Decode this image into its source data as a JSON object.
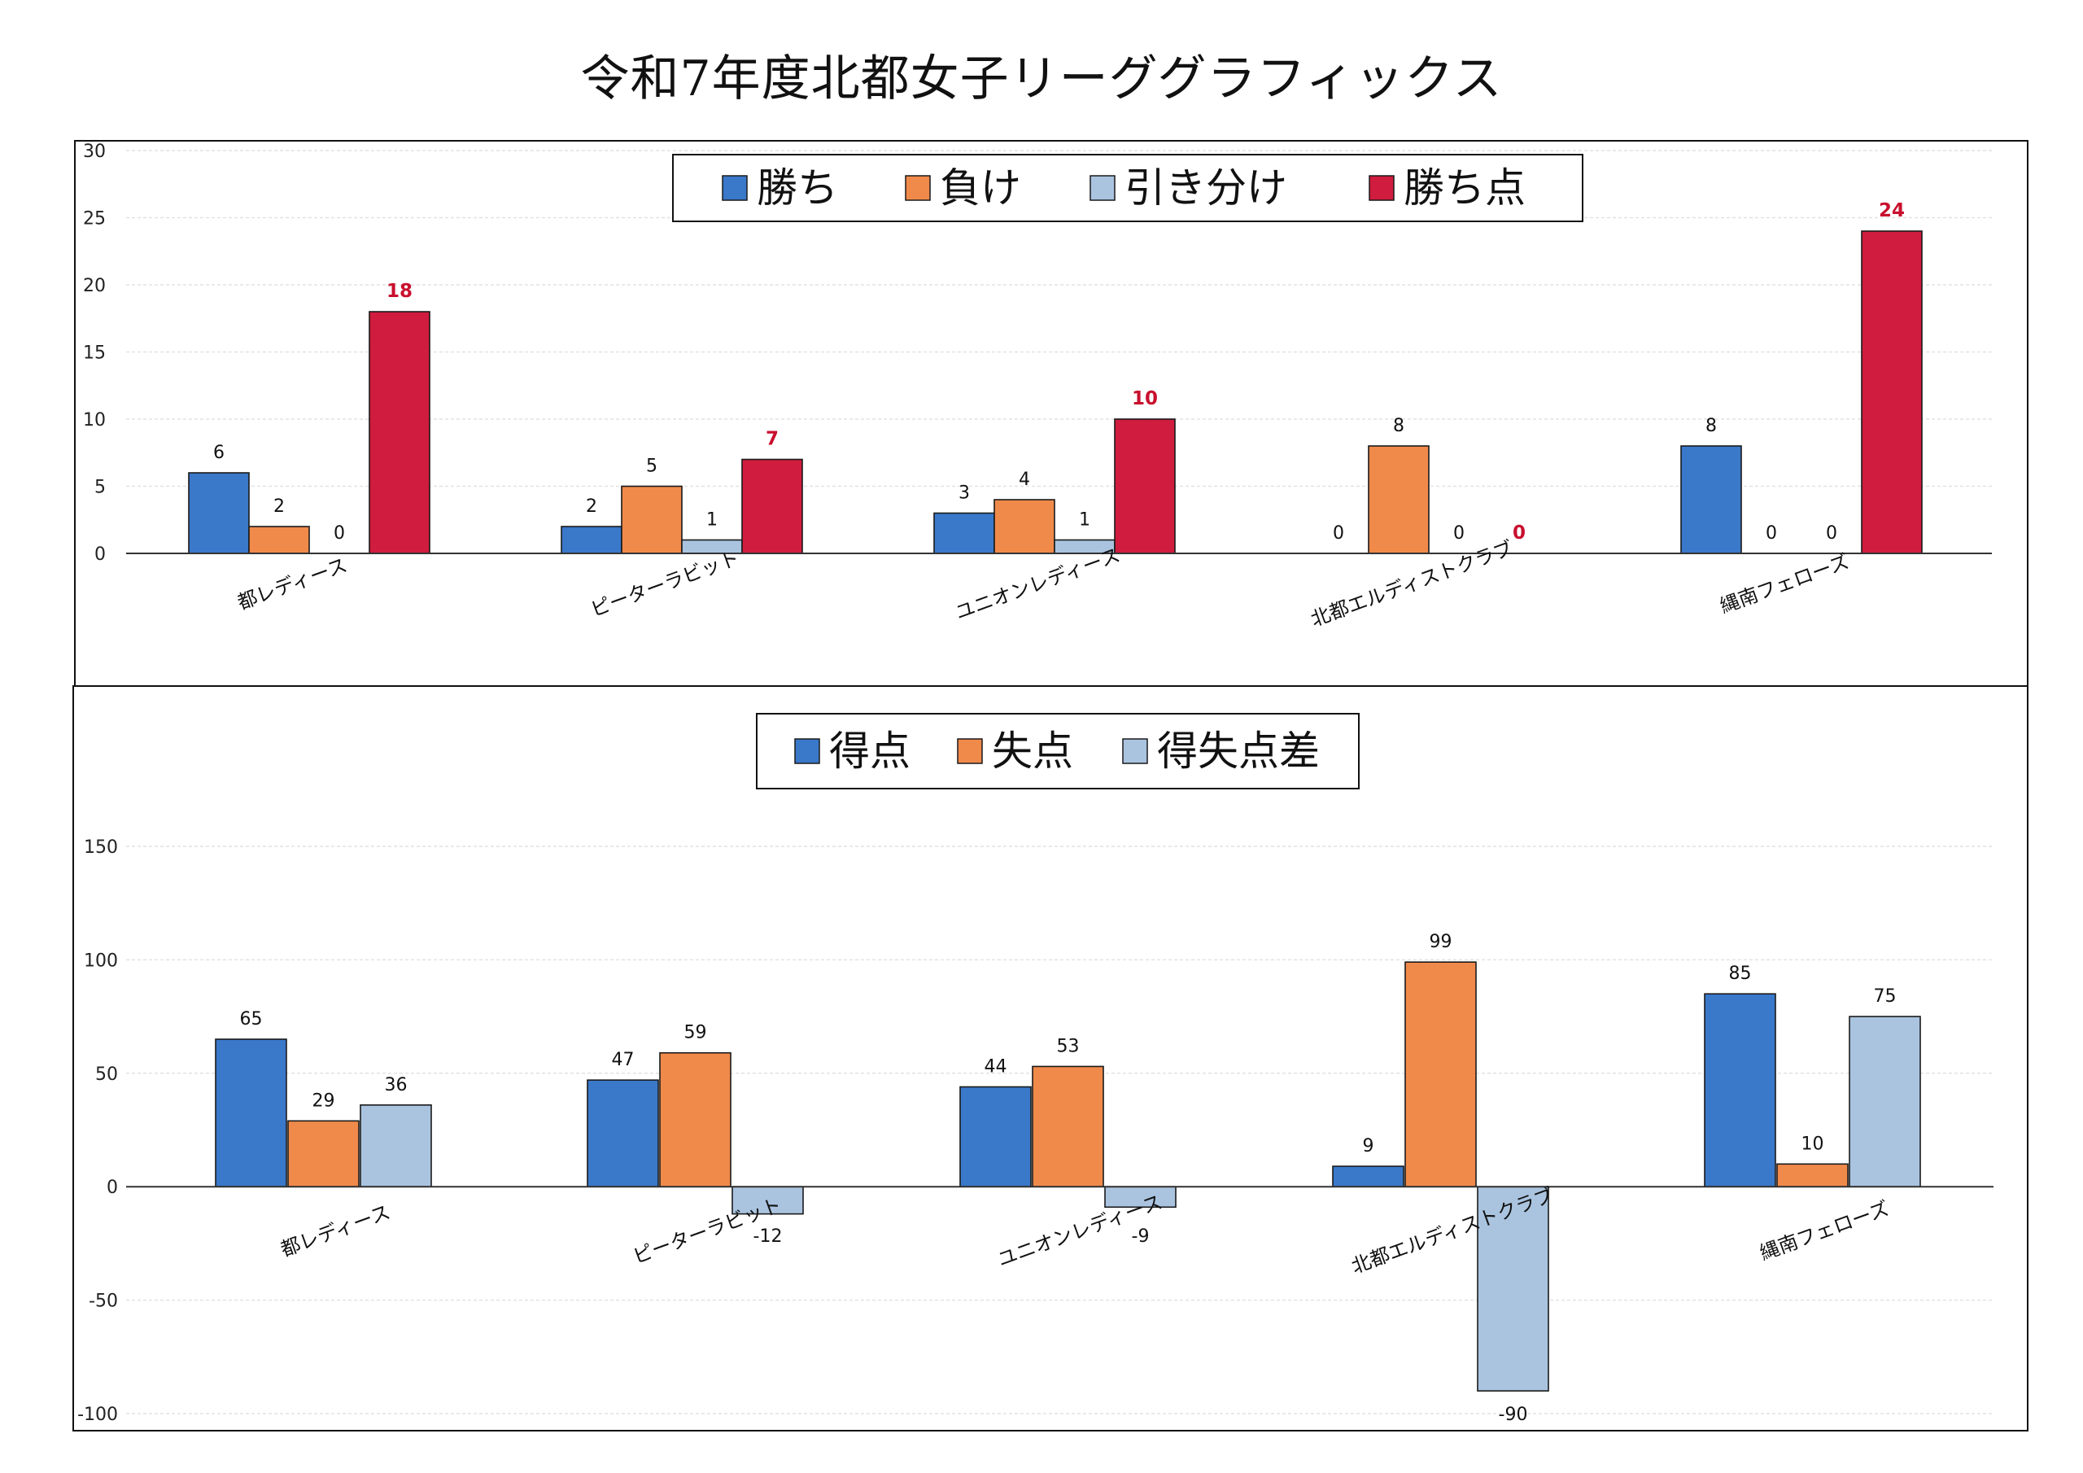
{
  "title": "令和7年度北都女子リーググラフィックス",
  "colors": {
    "win": "#3a78c9",
    "loss": "#f08a4b",
    "draw": "#aac4e0",
    "points": "#d01c3e",
    "goals_for": "#3a78c9",
    "goals_against": "#f08a4b",
    "goal_diff": "#aac4e0"
  },
  "chart_data": [
    {
      "type": "bar",
      "categories": [
        "都レディース",
        "ピーターラビット",
        "ユニオンレディース",
        "北都エルディストクラブ",
        "縄南フェローズ"
      ],
      "series": [
        {
          "name": "勝ち",
          "values": [
            6,
            2,
            3,
            0,
            8
          ]
        },
        {
          "name": "負け",
          "values": [
            2,
            5,
            4,
            8,
            0
          ]
        },
        {
          "name": "引き分け",
          "values": [
            0,
            1,
            1,
            0,
            0
          ]
        },
        {
          "name": "勝ち点",
          "values": [
            18,
            7,
            10,
            0,
            24
          ]
        }
      ],
      "ylim": [
        0,
        30
      ],
      "yticks": [
        0,
        5,
        10,
        15,
        20,
        25,
        30
      ],
      "grid": true,
      "legend": "top-center"
    },
    {
      "type": "bar",
      "categories": [
        "都レディース",
        "ピーターラビット",
        "ユニオンレディース",
        "北都エルディストクラブ",
        "縄南フェローズ"
      ],
      "series": [
        {
          "name": "得点",
          "values": [
            65,
            47,
            44,
            9,
            85
          ]
        },
        {
          "name": "失点",
          "values": [
            29,
            59,
            53,
            99,
            10
          ]
        },
        {
          "name": "得失点差",
          "values": [
            36,
            -12,
            -9,
            -90,
            75
          ]
        }
      ],
      "ylim": [
        -100,
        150
      ],
      "yticks": [
        -100,
        -50,
        0,
        50,
        100,
        150
      ],
      "grid": true,
      "legend": "top-center"
    }
  ]
}
